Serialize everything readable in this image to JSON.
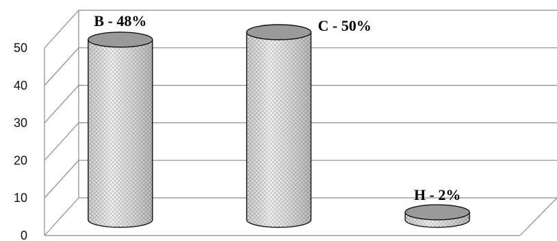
{
  "chart_data": {
    "type": "bar",
    "style": "3d-cylinder",
    "categories": [
      "B",
      "C",
      "H"
    ],
    "values": [
      48,
      50,
      2
    ],
    "data_labels": [
      "B - 48%",
      "C - 50%",
      "H - 2%"
    ],
    "ylim": [
      0,
      50
    ],
    "yticks": [
      "0",
      "10",
      "20",
      "30",
      "40",
      "50"
    ],
    "grid": true,
    "legend": "none",
    "colors": {
      "bar_fill": "#eeeeee",
      "bar_pattern": "#b8b8b8",
      "bar_top": "#9a9a9a",
      "grid": "#8a8a8a"
    }
  }
}
